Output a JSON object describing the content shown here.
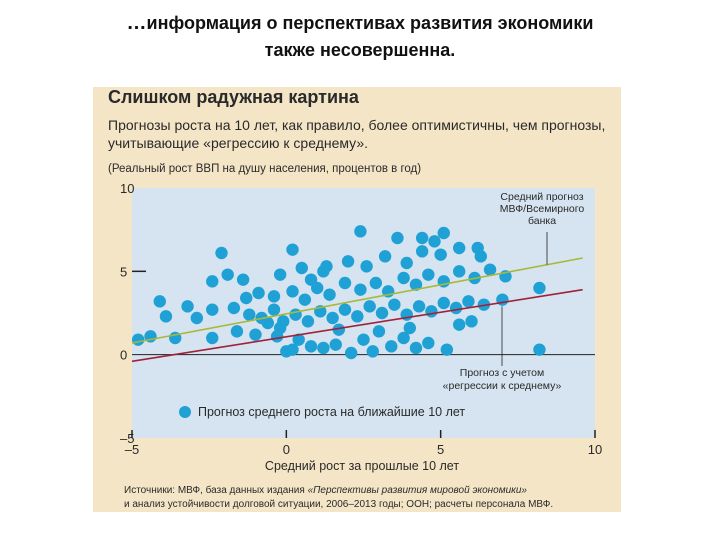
{
  "slide": {
    "ellipsis": "…",
    "title_line1": "информация о перспективах развития экономики",
    "title_line2": "также несовершенна."
  },
  "chart_data": {
    "type": "scatter",
    "title": "Слишком радужная картина",
    "subtitle": "Прогнозы роста на 10 лет, как правило, более оптимистичны, чем прогнозы, учитывающие «регрессию к среднему».",
    "units": "(Реальный рост ВВП на душу населения, процентов в год)",
    "xlabel": "Средний рост за прошлые 10 лет",
    "xlim": [
      -5,
      10
    ],
    "ylim": [
      -5,
      10
    ],
    "x_ticks": [
      "–5",
      "0",
      "5",
      "10"
    ],
    "y_ticks": [
      "10",
      "5",
      "0",
      "–5"
    ],
    "colors": {
      "plot_bg": "#d5e4f0",
      "panel_bg": "#f4e5c6",
      "dots": "#1fa1d6",
      "imf_line": "#a8b838",
      "regression_line": "#a0213a"
    },
    "lines": [
      {
        "name": "Средний прогноз МВФ/Всемирного банка",
        "x": [
          -5,
          9.6
        ],
        "y": [
          0.7,
          5.8
        ]
      },
      {
        "name": "Прогноз с учетом «регрессии к среднему»",
        "x": [
          -5,
          9.6
        ],
        "y": [
          -0.4,
          3.9
        ]
      }
    ],
    "annotations": {
      "imf_lines": [
        "Средний прогноз",
        "МВФ/Всемирного",
        "банка"
      ],
      "regression_lines": [
        "Прогноз с учетом",
        "«регрессии к среднему»"
      ]
    },
    "legend": "Прогноз среднего роста на ближайшие 10 лет",
    "series": [
      {
        "name": "Прогноз среднего роста на ближайшие 10 лет",
        "points": [
          [
            -4.8,
            0.9
          ],
          [
            -4.4,
            1.1
          ],
          [
            -3.6,
            1.0
          ],
          [
            -2.4,
            1.0
          ],
          [
            -1.6,
            1.4
          ],
          [
            -1.0,
            1.2
          ],
          [
            -0.6,
            1.9
          ],
          [
            -0.3,
            1.1
          ],
          [
            0.0,
            0.2
          ],
          [
            0.2,
            0.3
          ],
          [
            0.4,
            0.9
          ],
          [
            0.8,
            0.5
          ],
          [
            1.2,
            0.4
          ],
          [
            1.6,
            0.6
          ],
          [
            2.1,
            0.1
          ],
          [
            2.8,
            0.2
          ],
          [
            3.4,
            0.5
          ],
          [
            4.2,
            0.4
          ],
          [
            4.6,
            0.7
          ],
          [
            5.2,
            0.3
          ],
          [
            8.2,
            0.3
          ],
          [
            -4.1,
            3.2
          ],
          [
            -3.2,
            2.9
          ],
          [
            -3.9,
            2.3
          ],
          [
            -2.9,
            2.2
          ],
          [
            -2.4,
            2.7
          ],
          [
            -1.7,
            2.8
          ],
          [
            -1.2,
            2.4
          ],
          [
            -0.8,
            2.2
          ],
          [
            -0.4,
            2.7
          ],
          [
            -0.1,
            2.0
          ],
          [
            0.3,
            2.4
          ],
          [
            0.7,
            2.0
          ],
          [
            1.1,
            2.6
          ],
          [
            1.5,
            2.2
          ],
          [
            1.9,
            2.7
          ],
          [
            2.3,
            2.3
          ],
          [
            2.7,
            2.9
          ],
          [
            3.1,
            2.5
          ],
          [
            3.5,
            3.0
          ],
          [
            3.9,
            2.4
          ],
          [
            4.3,
            2.9
          ],
          [
            4.7,
            2.6
          ],
          [
            5.1,
            3.1
          ],
          [
            5.5,
            2.8
          ],
          [
            5.9,
            3.2
          ],
          [
            6.4,
            3.0
          ],
          [
            7.0,
            3.3
          ],
          [
            -1.3,
            3.4
          ],
          [
            -0.9,
            3.7
          ],
          [
            -0.4,
            3.5
          ],
          [
            0.2,
            3.8
          ],
          [
            0.6,
            3.3
          ],
          [
            1.0,
            4.0
          ],
          [
            1.4,
            3.6
          ],
          [
            1.9,
            4.3
          ],
          [
            2.4,
            3.9
          ],
          [
            2.9,
            4.3
          ],
          [
            3.3,
            3.8
          ],
          [
            3.8,
            4.6
          ],
          [
            4.2,
            4.2
          ],
          [
            4.6,
            4.8
          ],
          [
            5.1,
            4.4
          ],
          [
            5.6,
            5.0
          ],
          [
            6.1,
            4.6
          ],
          [
            6.6,
            5.1
          ],
          [
            7.1,
            4.7
          ],
          [
            8.2,
            4.0
          ],
          [
            -2.4,
            4.4
          ],
          [
            -1.9,
            4.8
          ],
          [
            -1.4,
            4.5
          ],
          [
            -0.2,
            4.8
          ],
          [
            0.5,
            5.2
          ],
          [
            1.2,
            5.0
          ],
          [
            2.0,
            5.6
          ],
          [
            2.6,
            5.3
          ],
          [
            3.2,
            5.9
          ],
          [
            3.9,
            5.5
          ],
          [
            4.4,
            6.2
          ],
          [
            5.0,
            6.0
          ],
          [
            5.6,
            6.4
          ],
          [
            6.3,
            5.9
          ],
          [
            -2.1,
            6.1
          ],
          [
            0.2,
            6.3
          ],
          [
            2.4,
            7.4
          ],
          [
            3.6,
            7.0
          ],
          [
            4.4,
            7.0
          ],
          [
            5.1,
            7.3
          ],
          [
            6.2,
            6.4
          ],
          [
            4.8,
            6.8
          ],
          [
            1.3,
            5.3
          ],
          [
            0.8,
            4.5
          ],
          [
            -0.2,
            1.6
          ],
          [
            1.7,
            1.5
          ],
          [
            3.0,
            1.4
          ],
          [
            4.0,
            1.6
          ],
          [
            5.6,
            1.8
          ],
          [
            2.5,
            0.9
          ],
          [
            3.8,
            1.0
          ],
          [
            6.0,
            2.0
          ]
        ]
      }
    ]
  },
  "legend": {
    "label": "Прогноз среднего роста на ближайшие 10 лет"
  },
  "sources": {
    "line1_plain": "Источники: МВФ, база данных издания ",
    "line1_italic": "«Перспективы развития мировой экономики»",
    "line2": "и анализ устойчивости долговой ситуации, 2006–2013 годы; ООН; расчеты персонала МВФ."
  }
}
